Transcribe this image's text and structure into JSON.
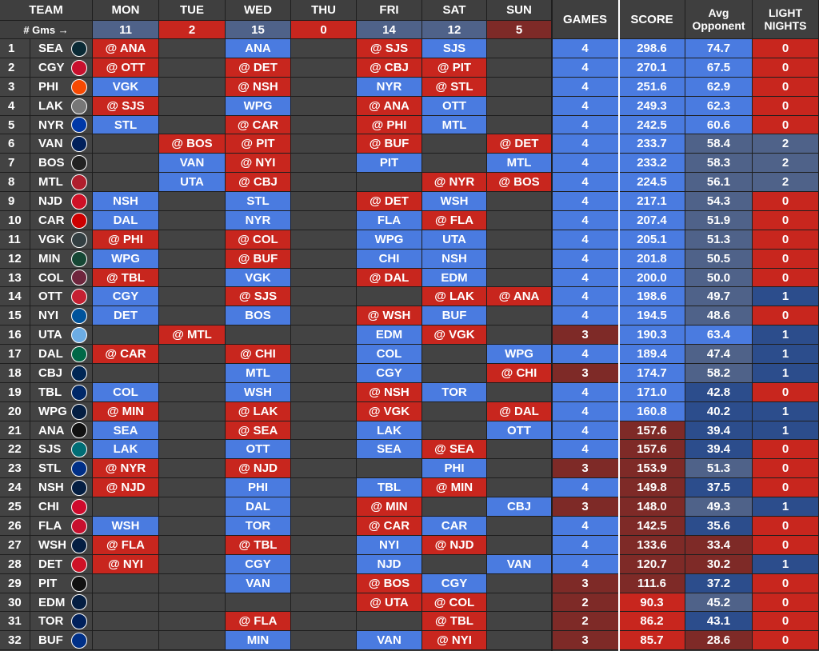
{
  "headers": {
    "team": "TEAM",
    "days": [
      "MON",
      "TUE",
      "WED",
      "THU",
      "FRI",
      "SAT",
      "SUN"
    ],
    "games": "GAMES",
    "score": "SCORE",
    "avg_opponent_1": "Avg",
    "avg_opponent_2": "Opponent",
    "light_nights_1": "LIGHT",
    "light_nights_2": "NIGHTS"
  },
  "gms_label": "# Gms →",
  "day_counts": [
    "11",
    "2",
    "15",
    "0",
    "14",
    "12",
    "5"
  ],
  "day_count_colors": [
    "slate",
    "red",
    "slate",
    "red",
    "slate",
    "slate",
    "maroon"
  ],
  "colors": {
    "blue": "#4a7be0",
    "red": "#c8261e",
    "maroon": "#7e2a27",
    "dark": "#434343",
    "slate": "#4f6289",
    "navy": "#2c4d8c"
  },
  "teams": [
    {
      "rank": "1",
      "abbr": "SEA",
      "logo_color": "#0a2a35",
      "days": [
        "@ ANA",
        "",
        "ANA",
        "",
        "@ SJS",
        "SJS",
        ""
      ],
      "games": "4",
      "score": "298.6",
      "avg": "74.7",
      "light": "0"
    },
    {
      "rank": "2",
      "abbr": "CGY",
      "logo_color": "#c8102e",
      "days": [
        "@ OTT",
        "",
        "@ DET",
        "",
        "@ CBJ",
        "@ PIT",
        ""
      ],
      "games": "4",
      "score": "270.1",
      "avg": "67.5",
      "light": "0"
    },
    {
      "rank": "3",
      "abbr": "PHI",
      "logo_color": "#f74902",
      "days": [
        "VGK",
        "",
        "@ NSH",
        "",
        "NYR",
        "@ STL",
        ""
      ],
      "games": "4",
      "score": "251.6",
      "avg": "62.9",
      "light": "0"
    },
    {
      "rank": "4",
      "abbr": "LAK",
      "logo_color": "#777777",
      "days": [
        "@ SJS",
        "",
        "WPG",
        "",
        "@ ANA",
        "OTT",
        ""
      ],
      "games": "4",
      "score": "249.3",
      "avg": "62.3",
      "light": "0"
    },
    {
      "rank": "5",
      "abbr": "NYR",
      "logo_color": "#0038a8",
      "days": [
        "STL",
        "",
        "@ CAR",
        "",
        "@ PHI",
        "MTL",
        ""
      ],
      "games": "4",
      "score": "242.5",
      "avg": "60.6",
      "light": "0"
    },
    {
      "rank": "6",
      "abbr": "VAN",
      "logo_color": "#00205b",
      "days": [
        "",
        "@ BOS",
        "@ PIT",
        "",
        "@ BUF",
        "",
        "@ DET"
      ],
      "games": "4",
      "score": "233.7",
      "avg": "58.4",
      "light": "2"
    },
    {
      "rank": "7",
      "abbr": "BOS",
      "logo_color": "#222222",
      "days": [
        "",
        "VAN",
        "@ NYI",
        "",
        "PIT",
        "",
        "MTL"
      ],
      "games": "4",
      "score": "233.2",
      "avg": "58.3",
      "light": "2"
    },
    {
      "rank": "8",
      "abbr": "MTL",
      "logo_color": "#af1e2d",
      "days": [
        "",
        "UTA",
        "@ CBJ",
        "",
        "",
        "@ NYR",
        "@ BOS"
      ],
      "games": "4",
      "score": "224.5",
      "avg": "56.1",
      "light": "2"
    },
    {
      "rank": "9",
      "abbr": "NJD",
      "logo_color": "#ce1126",
      "days": [
        "NSH",
        "",
        "STL",
        "",
        "@ DET",
        "WSH",
        ""
      ],
      "games": "4",
      "score": "217.1",
      "avg": "54.3",
      "light": "0"
    },
    {
      "rank": "10",
      "abbr": "CAR",
      "logo_color": "#cc0000",
      "days": [
        "DAL",
        "",
        "NYR",
        "",
        "FLA",
        "@ FLA",
        ""
      ],
      "games": "4",
      "score": "207.4",
      "avg": "51.9",
      "light": "0"
    },
    {
      "rank": "11",
      "abbr": "VGK",
      "logo_color": "#333f42",
      "days": [
        "@ PHI",
        "",
        "@ COL",
        "",
        "WPG",
        "UTA",
        ""
      ],
      "games": "4",
      "score": "205.1",
      "avg": "51.3",
      "light": "0"
    },
    {
      "rank": "12",
      "abbr": "MIN",
      "logo_color": "#154734",
      "days": [
        "WPG",
        "",
        "@ BUF",
        "",
        "CHI",
        "NSH",
        ""
      ],
      "games": "4",
      "score": "201.8",
      "avg": "50.5",
      "light": "0"
    },
    {
      "rank": "13",
      "abbr": "COL",
      "logo_color": "#6f263d",
      "days": [
        "@ TBL",
        "",
        "VGK",
        "",
        "@ DAL",
        "EDM",
        ""
      ],
      "games": "4",
      "score": "200.0",
      "avg": "50.0",
      "light": "0"
    },
    {
      "rank": "14",
      "abbr": "OTT",
      "logo_color": "#c52032",
      "days": [
        "CGY",
        "",
        "@ SJS",
        "",
        "",
        "@ LAK",
        "@ ANA"
      ],
      "games": "4",
      "score": "198.6",
      "avg": "49.7",
      "light": "1"
    },
    {
      "rank": "15",
      "abbr": "NYI",
      "logo_color": "#00539b",
      "days": [
        "DET",
        "",
        "BOS",
        "",
        "@ WSH",
        "BUF",
        ""
      ],
      "games": "4",
      "score": "194.5",
      "avg": "48.6",
      "light": "0"
    },
    {
      "rank": "16",
      "abbr": "UTA",
      "logo_color": "#6cace4",
      "days": [
        "",
        "@ MTL",
        "",
        "",
        "EDM",
        "@ VGK",
        ""
      ],
      "games": "3",
      "score": "190.3",
      "avg": "63.4",
      "light": "1"
    },
    {
      "rank": "17",
      "abbr": "DAL",
      "logo_color": "#006847",
      "days": [
        "@ CAR",
        "",
        "@ CHI",
        "",
        "COL",
        "",
        "WPG"
      ],
      "games": "4",
      "score": "189.4",
      "avg": "47.4",
      "light": "1"
    },
    {
      "rank": "18",
      "abbr": "CBJ",
      "logo_color": "#002654",
      "days": [
        "",
        "",
        "MTL",
        "",
        "CGY",
        "",
        "@ CHI"
      ],
      "games": "3",
      "score": "174.7",
      "avg": "58.2",
      "light": "1"
    },
    {
      "rank": "19",
      "abbr": "TBL",
      "logo_color": "#002868",
      "days": [
        "COL",
        "",
        "WSH",
        "",
        "@ NSH",
        "TOR",
        ""
      ],
      "games": "4",
      "score": "171.0",
      "avg": "42.8",
      "light": "0"
    },
    {
      "rank": "20",
      "abbr": "WPG",
      "logo_color": "#041e42",
      "days": [
        "@ MIN",
        "",
        "@ LAK",
        "",
        "@ VGK",
        "",
        "@ DAL"
      ],
      "games": "4",
      "score": "160.8",
      "avg": "40.2",
      "light": "1"
    },
    {
      "rank": "21",
      "abbr": "ANA",
      "logo_color": "#111111",
      "days": [
        "SEA",
        "",
        "@ SEA",
        "",
        "LAK",
        "",
        "OTT"
      ],
      "games": "4",
      "score": "157.6",
      "avg": "39.4",
      "light": "1"
    },
    {
      "rank": "22",
      "abbr": "SJS",
      "logo_color": "#006d75",
      "days": [
        "LAK",
        "",
        "OTT",
        "",
        "SEA",
        "@ SEA",
        ""
      ],
      "games": "4",
      "score": "157.6",
      "avg": "39.4",
      "light": "0"
    },
    {
      "rank": "23",
      "abbr": "STL",
      "logo_color": "#002f87",
      "days": [
        "@ NYR",
        "",
        "@ NJD",
        "",
        "",
        "PHI",
        ""
      ],
      "games": "3",
      "score": "153.9",
      "avg": "51.3",
      "light": "0"
    },
    {
      "rank": "24",
      "abbr": "NSH",
      "logo_color": "#041e42",
      "days": [
        "@ NJD",
        "",
        "PHI",
        "",
        "TBL",
        "@ MIN",
        ""
      ],
      "games": "4",
      "score": "149.8",
      "avg": "37.5",
      "light": "0"
    },
    {
      "rank": "25",
      "abbr": "CHI",
      "logo_color": "#cf0a2c",
      "days": [
        "",
        "",
        "DAL",
        "",
        "@ MIN",
        "",
        "CBJ"
      ],
      "games": "3",
      "score": "148.0",
      "avg": "49.3",
      "light": "1"
    },
    {
      "rank": "26",
      "abbr": "FLA",
      "logo_color": "#c8102e",
      "days": [
        "WSH",
        "",
        "TOR",
        "",
        "@ CAR",
        "CAR",
        ""
      ],
      "games": "4",
      "score": "142.5",
      "avg": "35.6",
      "light": "0"
    },
    {
      "rank": "27",
      "abbr": "WSH",
      "logo_color": "#041e42",
      "days": [
        "@ FLA",
        "",
        "@ TBL",
        "",
        "NYI",
        "@ NJD",
        ""
      ],
      "games": "4",
      "score": "133.6",
      "avg": "33.4",
      "light": "0"
    },
    {
      "rank": "28",
      "abbr": "DET",
      "logo_color": "#ce1126",
      "days": [
        "@ NYI",
        "",
        "CGY",
        "",
        "NJD",
        "",
        "VAN"
      ],
      "games": "4",
      "score": "120.7",
      "avg": "30.2",
      "light": "1"
    },
    {
      "rank": "29",
      "abbr": "PIT",
      "logo_color": "#111111",
      "days": [
        "",
        "",
        "VAN",
        "",
        "@ BOS",
        "CGY",
        ""
      ],
      "games": "3",
      "score": "111.6",
      "avg": "37.2",
      "light": "0"
    },
    {
      "rank": "30",
      "abbr": "EDM",
      "logo_color": "#041e42",
      "days": [
        "",
        "",
        "",
        "",
        "@ UTA",
        "@ COL",
        ""
      ],
      "games": "2",
      "score": "90.3",
      "avg": "45.2",
      "light": "0"
    },
    {
      "rank": "31",
      "abbr": "TOR",
      "logo_color": "#00205b",
      "days": [
        "",
        "",
        "@ FLA",
        "",
        "",
        "@ TBL",
        ""
      ],
      "games": "2",
      "score": "86.2",
      "avg": "43.1",
      "light": "0"
    },
    {
      "rank": "32",
      "abbr": "BUF",
      "logo_color": "#003087",
      "days": [
        "",
        "",
        "MIN",
        "",
        "VAN",
        "@ NYI",
        ""
      ],
      "games": "3",
      "score": "85.7",
      "avg": "28.6",
      "light": "0"
    }
  ]
}
